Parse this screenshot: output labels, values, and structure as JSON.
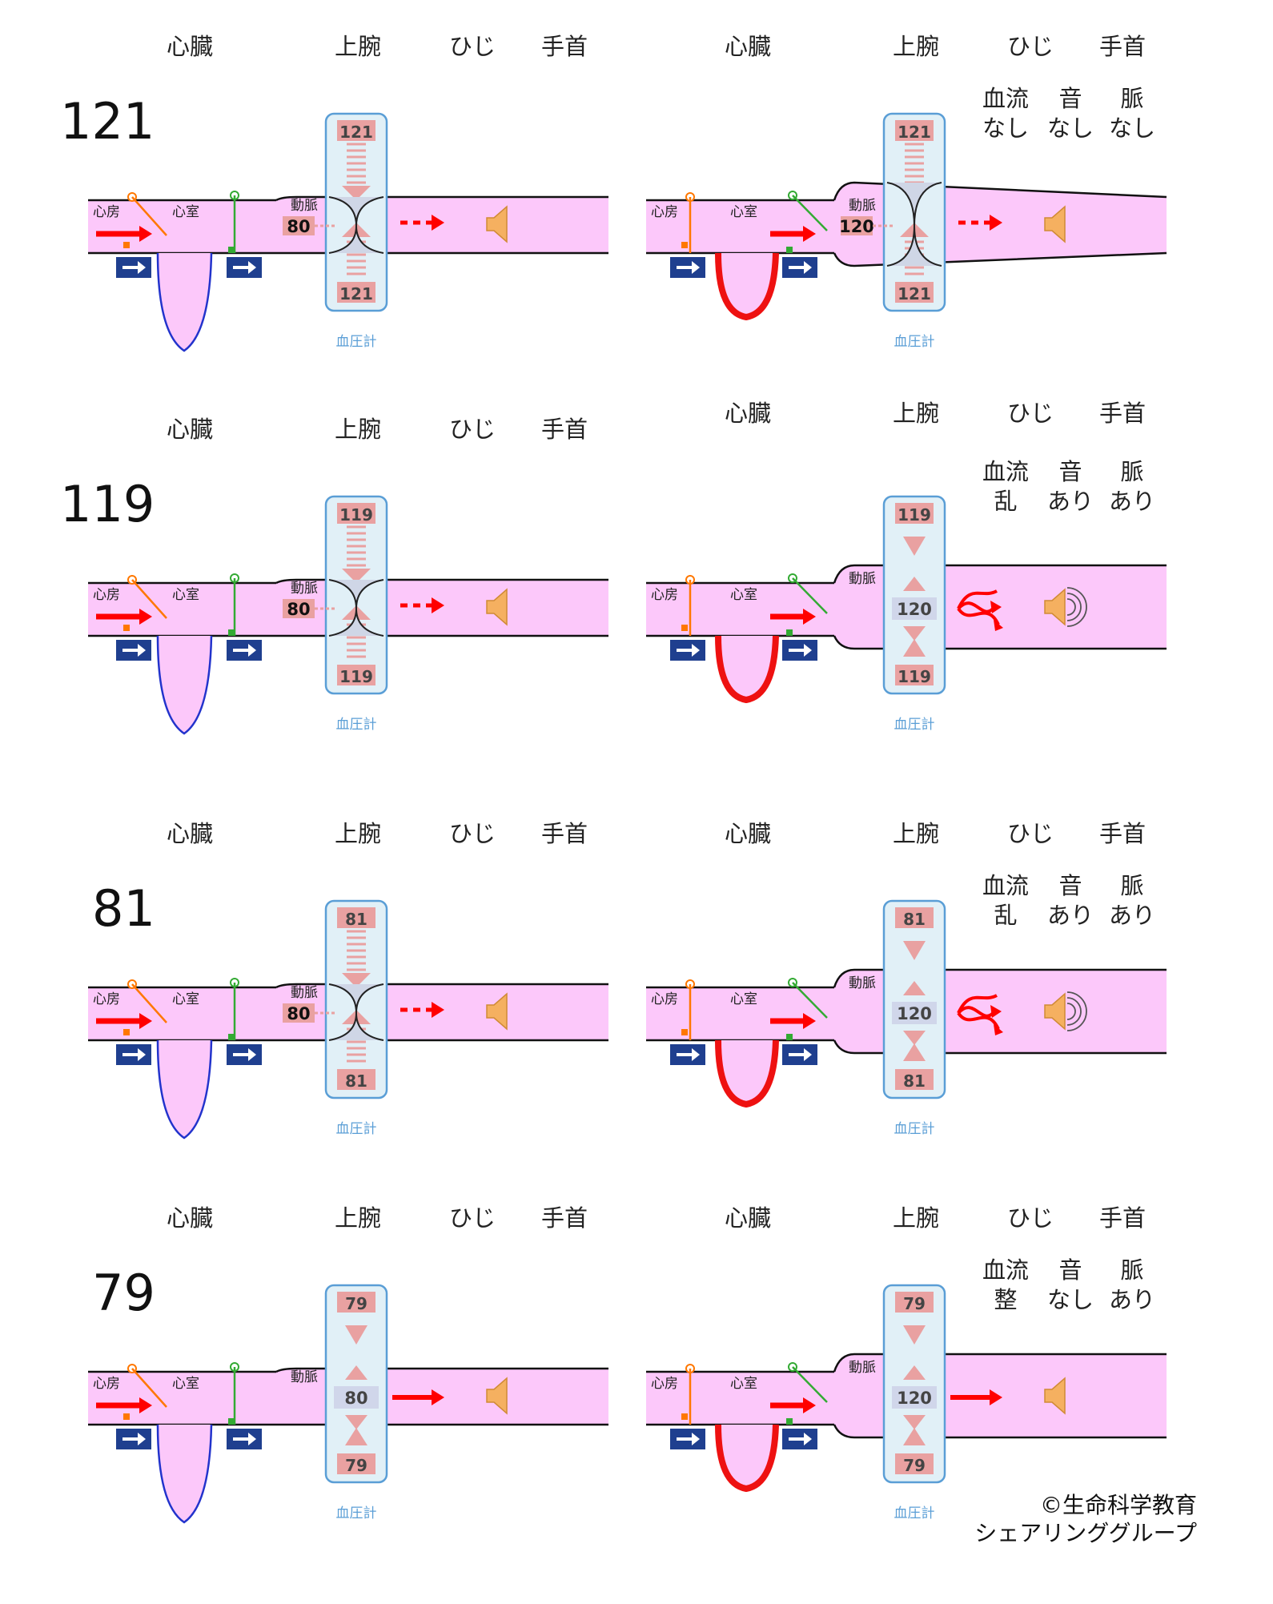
{
  "header_labels": [
    "心臓",
    "上腕",
    "ひじ",
    "手首"
  ],
  "status_labels": [
    "血流",
    "音",
    "脈"
  ],
  "part_labels": {
    "atrium": "心房",
    "ventricle": "心室",
    "artery": "動脈",
    "gauge": "血圧計"
  },
  "colors": {
    "blood": "#fcc8fa",
    "arrow": "#ff0000",
    "cuff": "#5a9ed6",
    "bar": "#e9a1a1",
    "relax_heart": "#2233cc",
    "contract_heart": "#ee1111",
    "valve_a": "#ff7700",
    "valve_b": "#33aa33",
    "box": "#1f3f8f",
    "speaker": "#f5b060"
  },
  "rows": [
    {
      "pressure": "121",
      "left": {
        "cuff_top": "121",
        "cuff_bottom": "121",
        "artery_value": "80",
        "state": "occluded"
      },
      "right": {
        "cuff_top": "121",
        "cuff_bottom": "121",
        "artery_value": "120",
        "state": "occluded",
        "status": [
          "なし",
          "なし",
          "なし"
        ],
        "sound": false
      }
    },
    {
      "pressure": "119",
      "left": {
        "cuff_top": "119",
        "cuff_bottom": "119",
        "artery_value": "80",
        "state": "occluded"
      },
      "right": {
        "cuff_top": "119",
        "cuff_bottom": "119",
        "center_value": "120",
        "state": "turbulent",
        "status": [
          "乱",
          "あり",
          "あり"
        ],
        "sound": true
      }
    },
    {
      "pressure": "81",
      "left": {
        "cuff_top": "81",
        "cuff_bottom": "81",
        "artery_value": "80",
        "state": "occluded"
      },
      "right": {
        "cuff_top": "81",
        "cuff_bottom": "81",
        "center_value": "120",
        "state": "turbulent",
        "status": [
          "乱",
          "あり",
          "あり"
        ],
        "sound": true
      }
    },
    {
      "pressure": "79",
      "left": {
        "cuff_top": "79",
        "cuff_bottom": "79",
        "center_value": "80",
        "state": "open"
      },
      "right": {
        "cuff_top": "79",
        "cuff_bottom": "79",
        "center_value": "120",
        "state": "open",
        "status": [
          "整",
          "なし",
          "あり"
        ],
        "sound": false
      }
    }
  ],
  "credit": [
    "©生命科学教育",
    "シェアリンググループ"
  ]
}
